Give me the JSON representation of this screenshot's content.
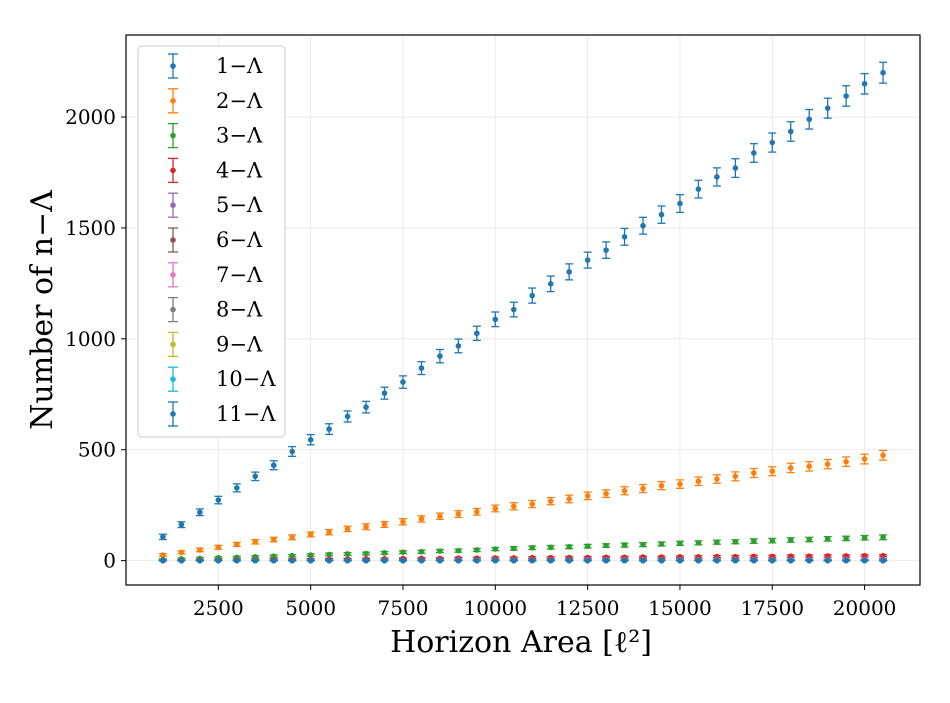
{
  "chart_data": {
    "type": "scatter",
    "title": "",
    "xlabel": "Horizon Area [ℓ²]",
    "ylabel": "Number of n−Λ",
    "xlim": [
      0,
      21500
    ],
    "ylim": [
      -110,
      2370
    ],
    "x_ticks": [
      2500,
      5000,
      7500,
      10000,
      12500,
      15000,
      17500,
      20000
    ],
    "x_tick_labels": [
      "2500",
      "5000",
      "7500",
      "10000",
      "12500",
      "15000",
      "17500",
      "20000"
    ],
    "y_ticks": [
      0,
      500,
      1000,
      1500,
      2000
    ],
    "y_tick_labels": [
      "0",
      "500",
      "1000",
      "1500",
      "2000"
    ],
    "grid": true,
    "legend_position": "top-left",
    "marker": "point-with-errorbar",
    "x": [
      1000,
      1500,
      2000,
      2500,
      3000,
      3500,
      4000,
      4500,
      5000,
      5500,
      6000,
      6500,
      7000,
      7500,
      8000,
      8500,
      9000,
      9500,
      10000,
      10500,
      11000,
      11500,
      12000,
      12500,
      13000,
      13500,
      14000,
      14500,
      15000,
      15500,
      16000,
      16500,
      17000,
      17500,
      18000,
      18500,
      19000,
      19500,
      20000,
      20500
    ],
    "series": [
      {
        "name": "1−Λ",
        "color": "#1f77b4",
        "values": [
          107,
          162,
          218,
          273,
          328,
          380,
          430,
          492,
          545,
          593,
          650,
          692,
          755,
          805,
          868,
          922,
          968,
          1025,
          1088,
          1132,
          1195,
          1248,
          1302,
          1355,
          1400,
          1460,
          1510,
          1560,
          1610,
          1675,
          1730,
          1770,
          1838,
          1885,
          1935,
          1990,
          2040,
          2095,
          2150,
          2200
        ],
        "errors": [
          12,
          13,
          15,
          17,
          18,
          19,
          20,
          22,
          23,
          24,
          25,
          26,
          27,
          28,
          29,
          30,
          31,
          32,
          33,
          33,
          34,
          35,
          36,
          36,
          37,
          38,
          38,
          39,
          40,
          40,
          41,
          42,
          42,
          43,
          44,
          44,
          45,
          46,
          46,
          47
        ]
      },
      {
        "name": "2−Λ",
        "color": "#ff7f0e",
        "values": [
          25,
          37,
          48,
          60,
          73,
          85,
          95,
          105,
          118,
          128,
          143,
          153,
          163,
          175,
          188,
          200,
          210,
          220,
          235,
          245,
          255,
          268,
          278,
          292,
          302,
          315,
          325,
          338,
          345,
          358,
          368,
          380,
          395,
          403,
          418,
          425,
          435,
          446,
          458,
          475
        ],
        "errors": [
          6,
          7,
          8,
          9,
          9,
          10,
          10,
          11,
          11,
          12,
          12,
          13,
          13,
          14,
          14,
          14,
          15,
          15,
          15,
          16,
          16,
          16,
          17,
          17,
          17,
          18,
          18,
          18,
          19,
          19,
          19,
          20,
          20,
          20,
          21,
          21,
          21,
          21,
          22,
          22
        ]
      },
      {
        "name": "3−Λ",
        "color": "#2ca02c",
        "values": [
          5,
          8,
          10,
          13,
          15,
          17,
          20,
          22,
          25,
          28,
          30,
          32,
          35,
          38,
          40,
          43,
          45,
          48,
          52,
          55,
          58,
          60,
          62,
          65,
          68,
          70,
          72,
          75,
          78,
          80,
          83,
          85,
          88,
          90,
          93,
          95,
          98,
          100,
          103,
          105
        ],
        "errors": [
          3,
          3,
          4,
          4,
          4,
          5,
          5,
          5,
          5,
          6,
          6,
          6,
          6,
          6,
          7,
          7,
          7,
          7,
          7,
          8,
          8,
          8,
          8,
          8,
          8,
          9,
          9,
          9,
          9,
          9,
          9,
          9,
          10,
          10,
          10,
          10,
          10,
          10,
          10,
          11
        ]
      },
      {
        "name": "4−Λ",
        "color": "#d62728",
        "values": [
          1,
          2,
          3,
          3,
          4,
          4,
          5,
          5,
          6,
          7,
          7,
          8,
          8,
          9,
          10,
          10,
          11,
          11,
          12,
          12,
          13,
          13,
          14,
          14,
          15,
          15,
          16,
          16,
          17,
          17,
          18,
          18,
          19,
          19,
          20,
          20,
          21,
          21,
          22,
          22
        ],
        "errors": [
          2,
          2,
          2,
          2,
          2,
          2,
          3,
          3,
          3,
          3,
          3,
          3,
          3,
          3,
          3,
          3,
          4,
          4,
          4,
          4,
          4,
          4,
          4,
          4,
          4,
          4,
          4,
          4,
          4,
          5,
          5,
          5,
          5,
          5,
          5,
          5,
          5,
          5,
          5,
          5
        ]
      },
      {
        "name": "5−Λ",
        "color": "#9467bd",
        "values": [
          0,
          1,
          1,
          1,
          1,
          1,
          1,
          1,
          2,
          2,
          2,
          2,
          2,
          2,
          2,
          3,
          3,
          3,
          3,
          3,
          3,
          3,
          3,
          4,
          4,
          4,
          4,
          4,
          4,
          4,
          4,
          5,
          5,
          5,
          5,
          5,
          5,
          5,
          5,
          6
        ],
        "errors": [
          1,
          1,
          1,
          1,
          1,
          1,
          1,
          1,
          1,
          1,
          1,
          1,
          1,
          1,
          2,
          2,
          2,
          2,
          2,
          2,
          2,
          2,
          2,
          2,
          2,
          2,
          2,
          2,
          2,
          2,
          2,
          2,
          2,
          2,
          2,
          2,
          2,
          2,
          2,
          2
        ]
      },
      {
        "name": "6−Λ",
        "color": "#8c564b",
        "values": [
          0,
          0,
          0,
          0,
          0,
          0,
          0,
          0,
          0,
          0,
          0,
          0,
          0,
          0,
          1,
          1,
          1,
          1,
          1,
          1,
          1,
          1,
          1,
          1,
          1,
          1,
          1,
          1,
          1,
          1,
          1,
          1,
          1,
          1,
          1,
          1,
          1,
          1,
          1,
          1
        ],
        "errors": [
          1,
          1,
          1,
          1,
          1,
          1,
          1,
          1,
          1,
          1,
          1,
          1,
          1,
          1,
          1,
          1,
          1,
          1,
          1,
          1,
          1,
          1,
          1,
          1,
          1,
          1,
          1,
          1,
          1,
          1,
          1,
          1,
          1,
          1,
          1,
          1,
          1,
          1,
          1,
          1
        ]
      },
      {
        "name": "7−Λ",
        "color": "#e377c2",
        "values": [
          0,
          0,
          0,
          0,
          0,
          0,
          0,
          0,
          0,
          0,
          0,
          0,
          0,
          0,
          0,
          0,
          0,
          0,
          0,
          0,
          0,
          0,
          0,
          0,
          0,
          0,
          0,
          0,
          0,
          0,
          0,
          0,
          0,
          0,
          0,
          0,
          0,
          0,
          0,
          0
        ],
        "errors": [
          1,
          1,
          1,
          1,
          1,
          1,
          1,
          1,
          1,
          1,
          1,
          1,
          1,
          1,
          1,
          1,
          1,
          1,
          1,
          1,
          1,
          1,
          1,
          1,
          1,
          1,
          1,
          1,
          1,
          1,
          1,
          1,
          1,
          1,
          1,
          1,
          1,
          1,
          1,
          1
        ]
      },
      {
        "name": "8−Λ",
        "color": "#7f7f7f",
        "values": [
          0,
          0,
          0,
          0,
          0,
          0,
          0,
          0,
          0,
          0,
          0,
          0,
          0,
          0,
          0,
          0,
          0,
          0,
          0,
          0,
          0,
          0,
          0,
          0,
          0,
          0,
          0,
          0,
          0,
          0,
          0,
          0,
          0,
          0,
          0,
          0,
          0,
          0,
          0,
          0
        ],
        "errors": [
          1,
          1,
          1,
          1,
          1,
          1,
          1,
          1,
          1,
          1,
          1,
          1,
          1,
          1,
          1,
          1,
          1,
          1,
          1,
          1,
          1,
          1,
          1,
          1,
          1,
          1,
          1,
          1,
          1,
          1,
          1,
          1,
          1,
          1,
          1,
          1,
          1,
          1,
          1,
          1
        ]
      },
      {
        "name": "9−Λ",
        "color": "#bcbd22",
        "values": [
          0,
          0,
          0,
          0,
          0,
          0,
          0,
          0,
          0,
          0,
          0,
          0,
          0,
          0,
          0,
          0,
          0,
          0,
          0,
          0,
          0,
          0,
          0,
          0,
          0,
          0,
          0,
          0,
          0,
          0,
          0,
          0,
          0,
          0,
          0,
          0,
          0,
          0,
          0,
          0
        ],
        "errors": [
          1,
          1,
          1,
          1,
          1,
          1,
          1,
          1,
          1,
          1,
          1,
          1,
          1,
          1,
          1,
          1,
          1,
          1,
          1,
          1,
          1,
          1,
          1,
          1,
          1,
          1,
          1,
          1,
          1,
          1,
          1,
          1,
          1,
          1,
          1,
          1,
          1,
          1,
          1,
          1
        ]
      },
      {
        "name": "10−Λ",
        "color": "#17becf",
        "values": [
          0,
          0,
          0,
          0,
          0,
          0,
          0,
          0,
          0,
          0,
          0,
          0,
          0,
          0,
          0,
          0,
          0,
          0,
          0,
          0,
          0,
          0,
          0,
          0,
          0,
          0,
          0,
          0,
          0,
          0,
          0,
          0,
          0,
          0,
          0,
          0,
          0,
          0,
          0,
          0
        ],
        "errors": [
          1,
          1,
          1,
          1,
          1,
          1,
          1,
          1,
          1,
          1,
          1,
          1,
          1,
          1,
          1,
          1,
          1,
          1,
          1,
          1,
          1,
          1,
          1,
          1,
          1,
          1,
          1,
          1,
          1,
          1,
          1,
          1,
          1,
          1,
          1,
          1,
          1,
          1,
          1,
          1
        ]
      },
      {
        "name": "11−Λ",
        "color": "#1f77b4",
        "values": [
          0,
          0,
          0,
          0,
          0,
          0,
          0,
          0,
          0,
          0,
          0,
          0,
          0,
          0,
          0,
          0,
          0,
          0,
          0,
          0,
          0,
          0,
          0,
          0,
          0,
          0,
          0,
          0,
          0,
          0,
          0,
          0,
          0,
          0,
          0,
          0,
          0,
          0,
          0,
          0
        ],
        "errors": [
          1,
          1,
          1,
          1,
          1,
          1,
          1,
          1,
          1,
          1,
          1,
          1,
          1,
          1,
          1,
          1,
          1,
          1,
          1,
          1,
          1,
          1,
          1,
          1,
          1,
          1,
          1,
          1,
          1,
          1,
          1,
          1,
          1,
          1,
          1,
          1,
          1,
          1,
          1,
          1
        ]
      }
    ]
  }
}
